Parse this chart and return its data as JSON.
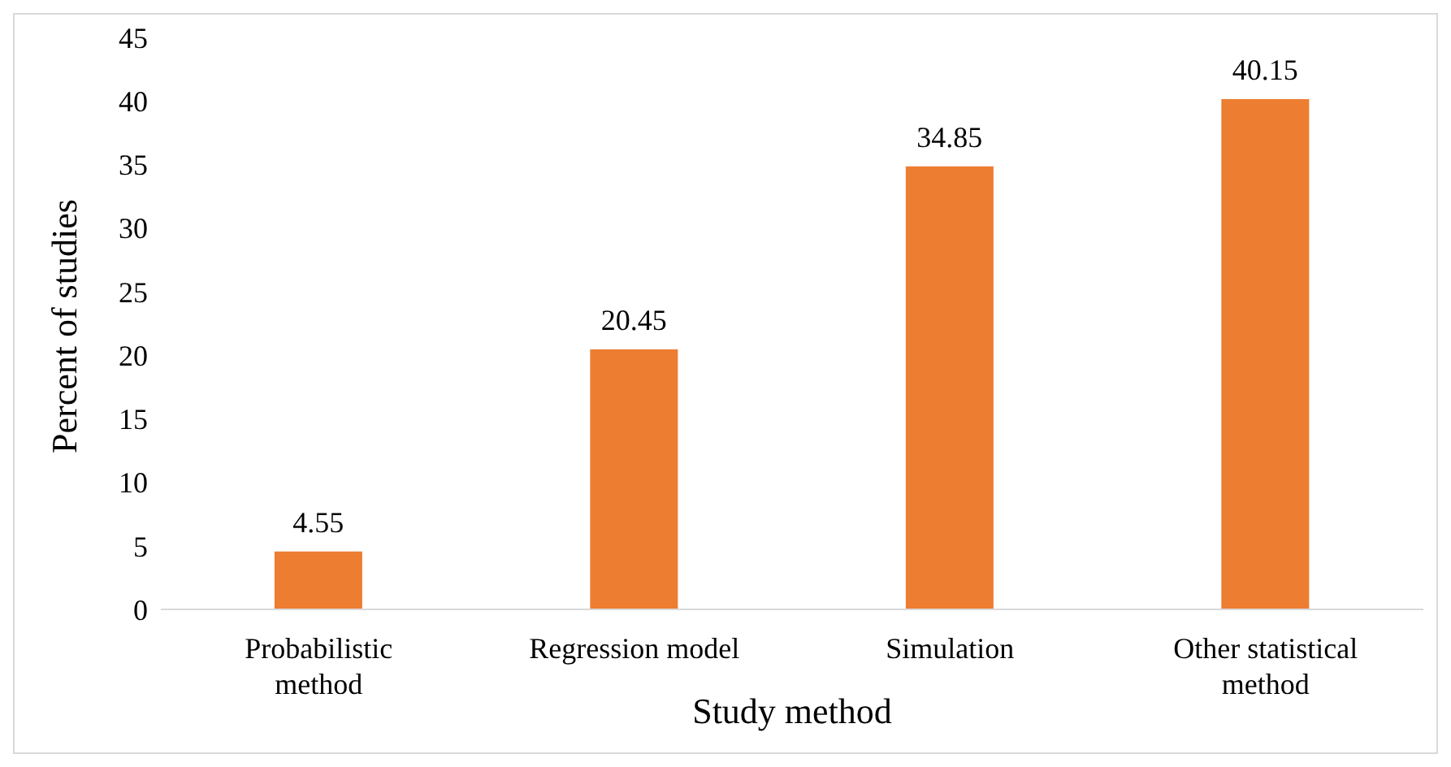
{
  "chart_data": {
    "type": "bar",
    "xlabel": "Study method",
    "ylabel": "Percent of studies",
    "categories": [
      "Probabilistic method",
      "Regression model",
      "Simulation",
      "Other statistical method"
    ],
    "values": [
      4.55,
      20.45,
      34.85,
      40.15
    ],
    "color": "#ed7d31",
    "data_labels": true,
    "ylim": [
      0,
      45
    ],
    "yticks": [
      0,
      5,
      10,
      15,
      20,
      25,
      30,
      35,
      40,
      45
    ],
    "grid": false,
    "legend": false
  }
}
